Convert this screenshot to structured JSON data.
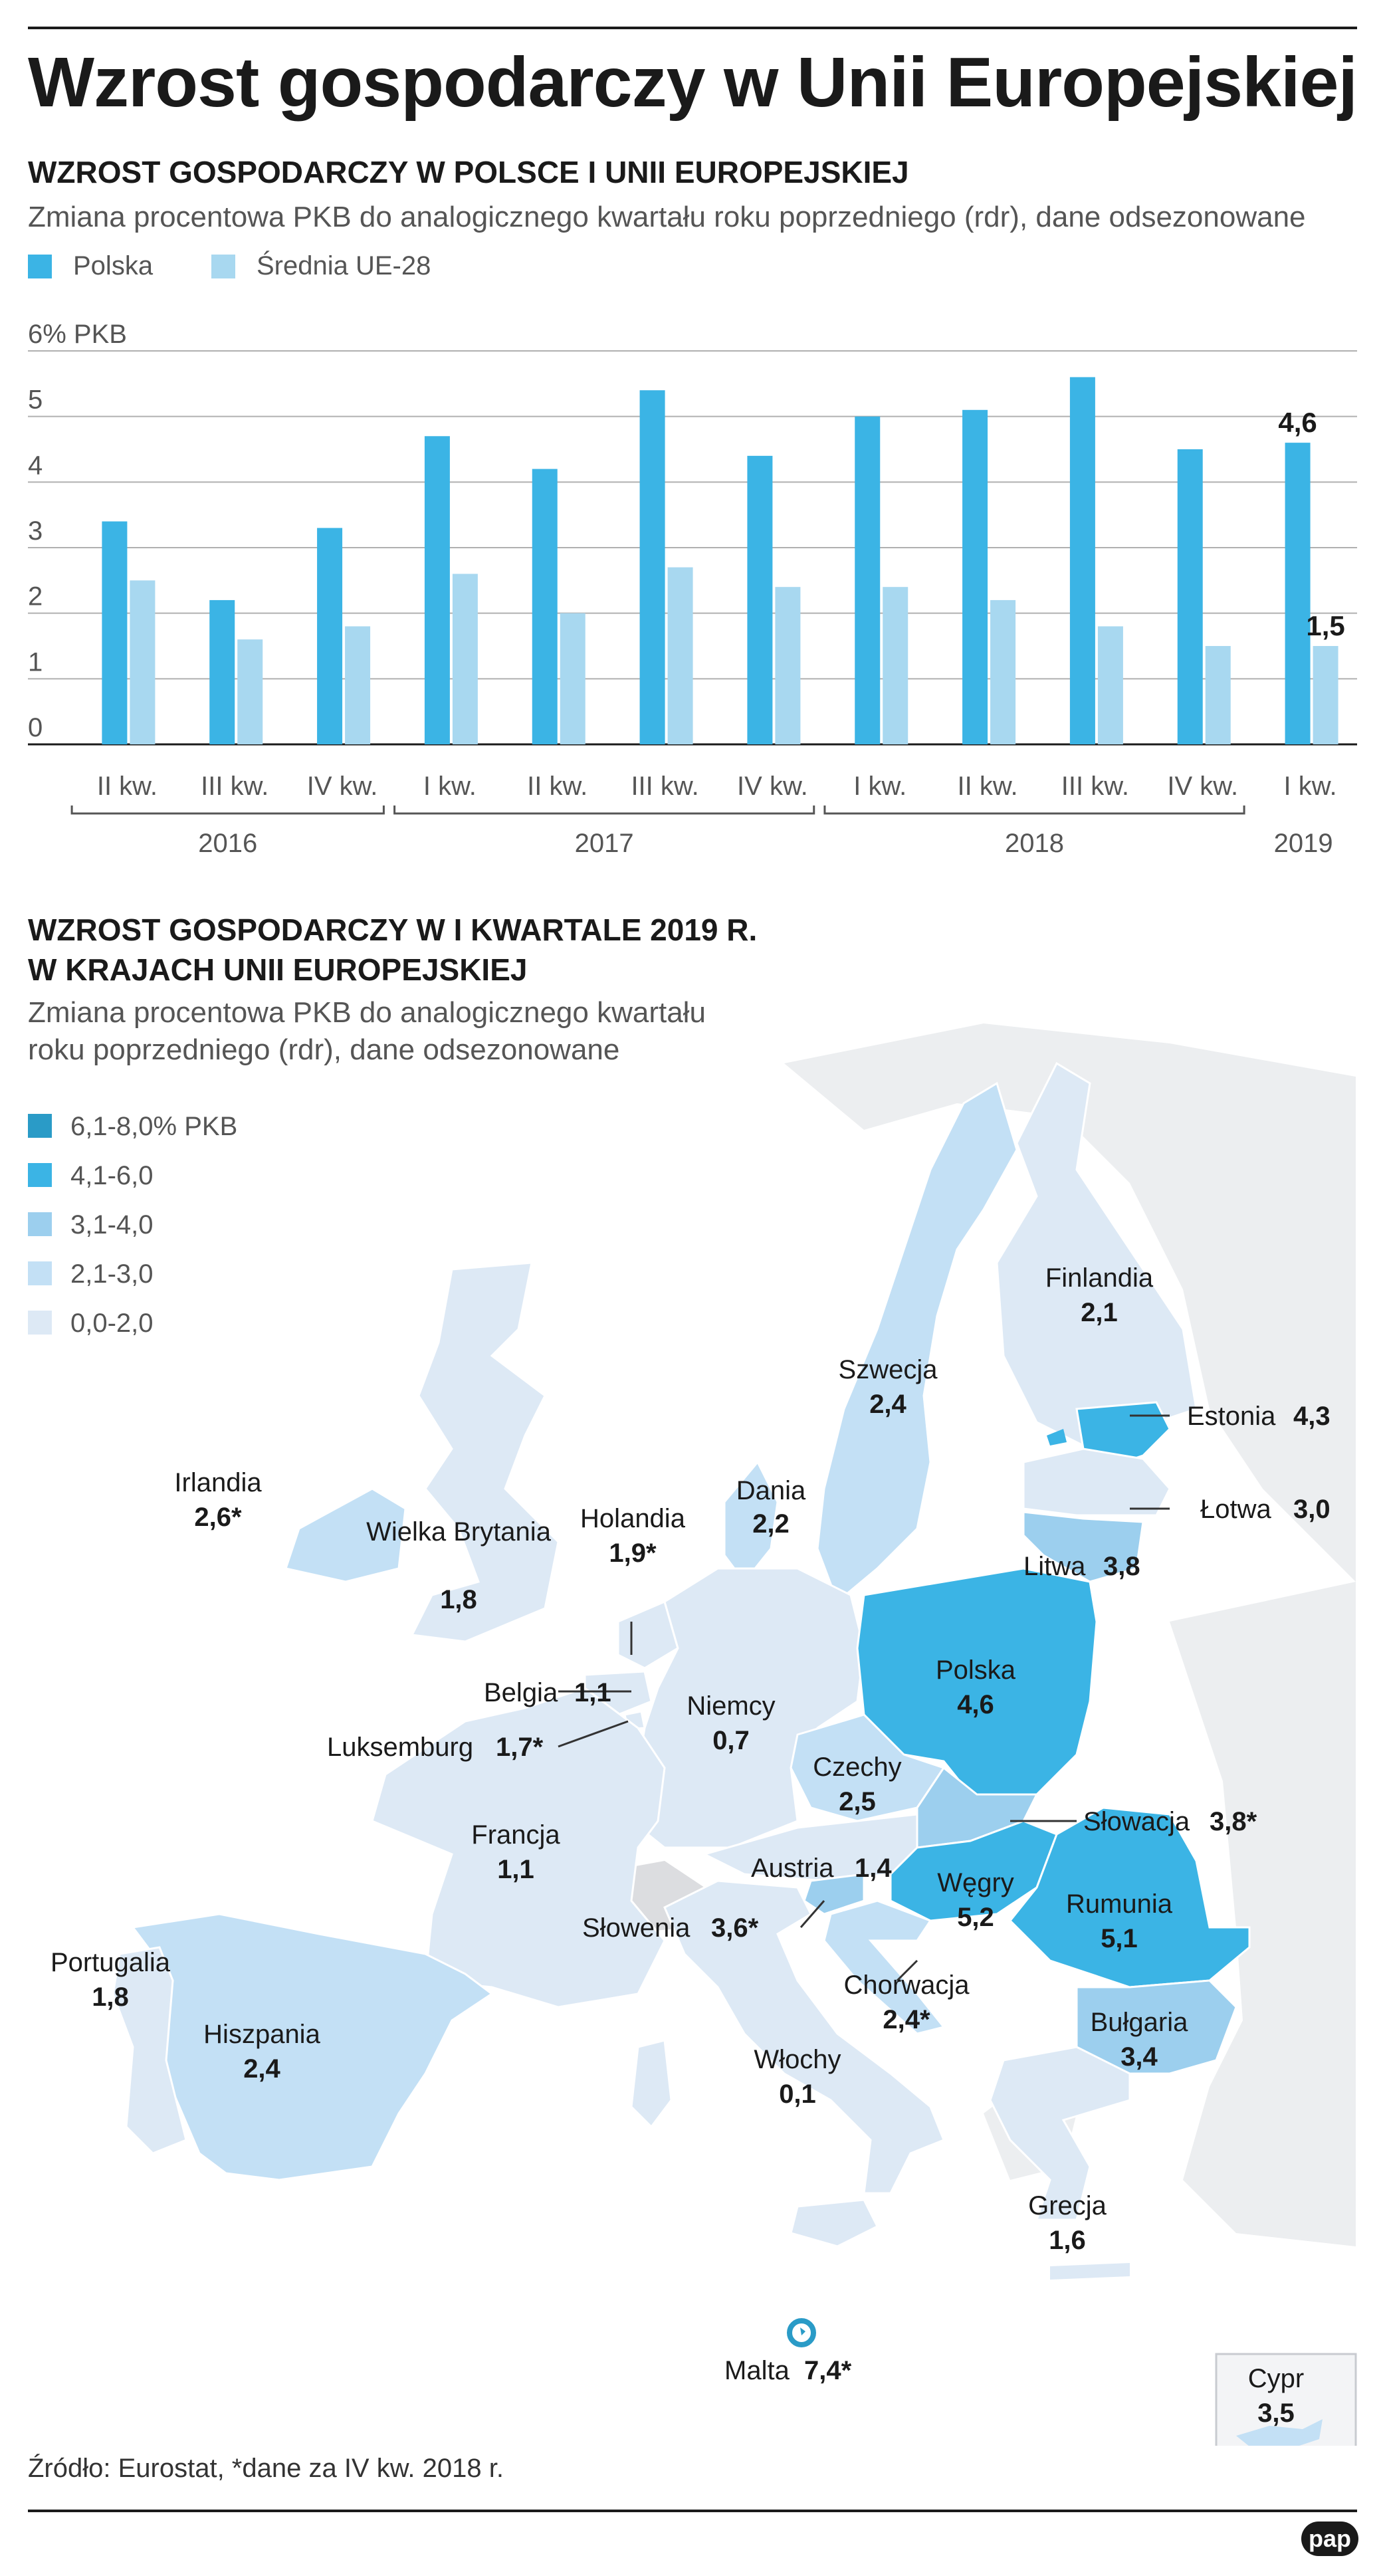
{
  "title": "Wzrost gospodarczy w Unii Europejskiej",
  "chart_section": {
    "heading": "WZROST GOSPODARCZY W POLSCE I UNII EUROPEJSKIEJ",
    "subtitle": "Zmiana procentowa PKB do analogicznego kwartału roku poprzedniego (rdr), dane odsezonowane",
    "legend": [
      {
        "label": "Polska",
        "color": "#3bb4e5"
      },
      {
        "label": "Średnia UE-28",
        "color": "#a8d8f0"
      }
    ]
  },
  "chart_data": {
    "type": "bar",
    "title": "WZROST GOSPODARCZY W POLSCE I UNII EUROPEJSKIEJ",
    "ylabel": "6% PKB",
    "ylim": [
      0,
      6
    ],
    "yticks": [
      "0",
      "1",
      "2",
      "3",
      "4",
      "5",
      "6% PKB"
    ],
    "categories": [
      "II kw.",
      "III kw.",
      "IV kw.",
      "I kw.",
      "II kw.",
      "III kw.",
      "IV kw.",
      "I kw.",
      "II kw.",
      "III kw.",
      "IV kw.",
      "I kw."
    ],
    "years": [
      {
        "label": "2016",
        "from": 0,
        "to": 2
      },
      {
        "label": "2017",
        "from": 3,
        "to": 6
      },
      {
        "label": "2018",
        "from": 7,
        "to": 10
      },
      {
        "label": "2019",
        "from": 11,
        "to": 11
      }
    ],
    "series": [
      {
        "name": "Polska",
        "color": "#3bb4e5",
        "values": [
          3.4,
          2.2,
          3.3,
          4.7,
          4.2,
          5.4,
          4.4,
          5.0,
          5.1,
          5.6,
          4.5,
          4.6
        ]
      },
      {
        "name": "Średnia UE-28",
        "color": "#a8d8f0",
        "values": [
          2.5,
          1.6,
          1.8,
          2.6,
          2.0,
          2.7,
          2.4,
          2.4,
          2.2,
          1.8,
          1.5,
          1.5
        ]
      }
    ],
    "annotations": [
      {
        "series": 0,
        "index": 11,
        "text": "4,6"
      },
      {
        "series": 1,
        "index": 11,
        "text": "1,5"
      }
    ]
  },
  "map_section": {
    "heading_line1": "WZROST GOSPODARCZY W I KWARTALE 2019 R.",
    "heading_line2": "W KRAJACH UNII EUROPEJSKIEJ",
    "subtitle_line1": "Zmiana procentowa PKB do analogicznego kwartału",
    "subtitle_line2": "roku poprzedniego (rdr), dane odsezonowane",
    "legend": [
      {
        "label": "6,1-8,0% PKB",
        "color": "#2a9bc7"
      },
      {
        "label": "4,1-6,0",
        "color": "#3bb4e5"
      },
      {
        "label": "3,1-4,0",
        "color": "#9ccfee"
      },
      {
        "label": "2,1-3,0",
        "color": "#c3e0f5"
      },
      {
        "label": "0,0-2,0",
        "color": "#dde9f5"
      }
    ],
    "countries": [
      {
        "name": "Finlandia",
        "value": "2,1"
      },
      {
        "name": "Szwecja",
        "value": "2,4"
      },
      {
        "name": "Estonia",
        "value": "4,3"
      },
      {
        "name": "Łotwa",
        "value": "3,0"
      },
      {
        "name": "Litwa",
        "value": "3,8"
      },
      {
        "name": "Dania",
        "value": "2,2"
      },
      {
        "name": "Irlandia",
        "value": "2,6*"
      },
      {
        "name": "Wielka Brytania",
        "value": "1,8"
      },
      {
        "name": "Holandia",
        "value": "1,9*"
      },
      {
        "name": "Belgia",
        "value": "1,1"
      },
      {
        "name": "Luksemburg",
        "value": "1,7*"
      },
      {
        "name": "Niemcy",
        "value": "0,7"
      },
      {
        "name": "Polska",
        "value": "4,6"
      },
      {
        "name": "Czechy",
        "value": "2,5"
      },
      {
        "name": "Słowacja",
        "value": "3,8*"
      },
      {
        "name": "Austria",
        "value": "1,4"
      },
      {
        "name": "Węgry",
        "value": "5,2"
      },
      {
        "name": "Rumunia",
        "value": "5,1"
      },
      {
        "name": "Francja",
        "value": "1,1"
      },
      {
        "name": "Słowenia",
        "value": "3,6*"
      },
      {
        "name": "Chorwacja",
        "value": "2,4*"
      },
      {
        "name": "Portugalia",
        "value": "1,8"
      },
      {
        "name": "Hiszpania",
        "value": "2,4"
      },
      {
        "name": "Włochy",
        "value": "0,1"
      },
      {
        "name": "Bułgaria",
        "value": "3,4"
      },
      {
        "name": "Grecja",
        "value": "1,6"
      },
      {
        "name": "Malta",
        "value": "7,4*"
      },
      {
        "name": "Cypr",
        "value": "3,5"
      }
    ]
  },
  "footer": {
    "source": "Źródło: Eurostat, *dane za IV kw. 2018 r.",
    "logo": "pap"
  }
}
